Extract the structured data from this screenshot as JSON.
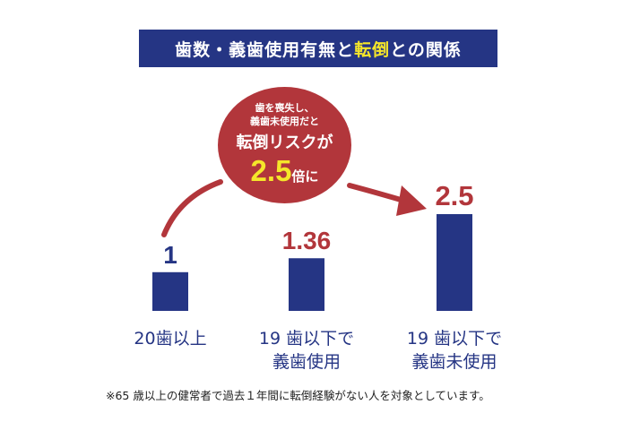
{
  "title": {
    "before": "歯数・義歯使用有無と",
    "highlight": "転倒",
    "after": "との関係"
  },
  "callout": {
    "line1": "歯を喪失し、",
    "line2": "義歯未使用だと",
    "line3": "転倒リスクが",
    "value": "2.5",
    "suffix": "倍に"
  },
  "footnote": "※65 歳以上の健常者で過去１年間に転倒経験がない人を対象としています。",
  "colors": {
    "navy": "#253584",
    "red": "#b2363b",
    "yellow": "#f5e62a"
  },
  "chart_data": {
    "type": "bar",
    "categories": [
      [
        "20歯以上"
      ],
      [
        "19 歯以下で",
        "義歯使用"
      ],
      [
        "19 歯以下で",
        "義歯未使用"
      ]
    ],
    "values": [
      1,
      1.36,
      2.5
    ],
    "value_labels": [
      "1",
      "1.36",
      "2.5"
    ],
    "title": "",
    "xlabel": "",
    "ylabel": ""
  }
}
